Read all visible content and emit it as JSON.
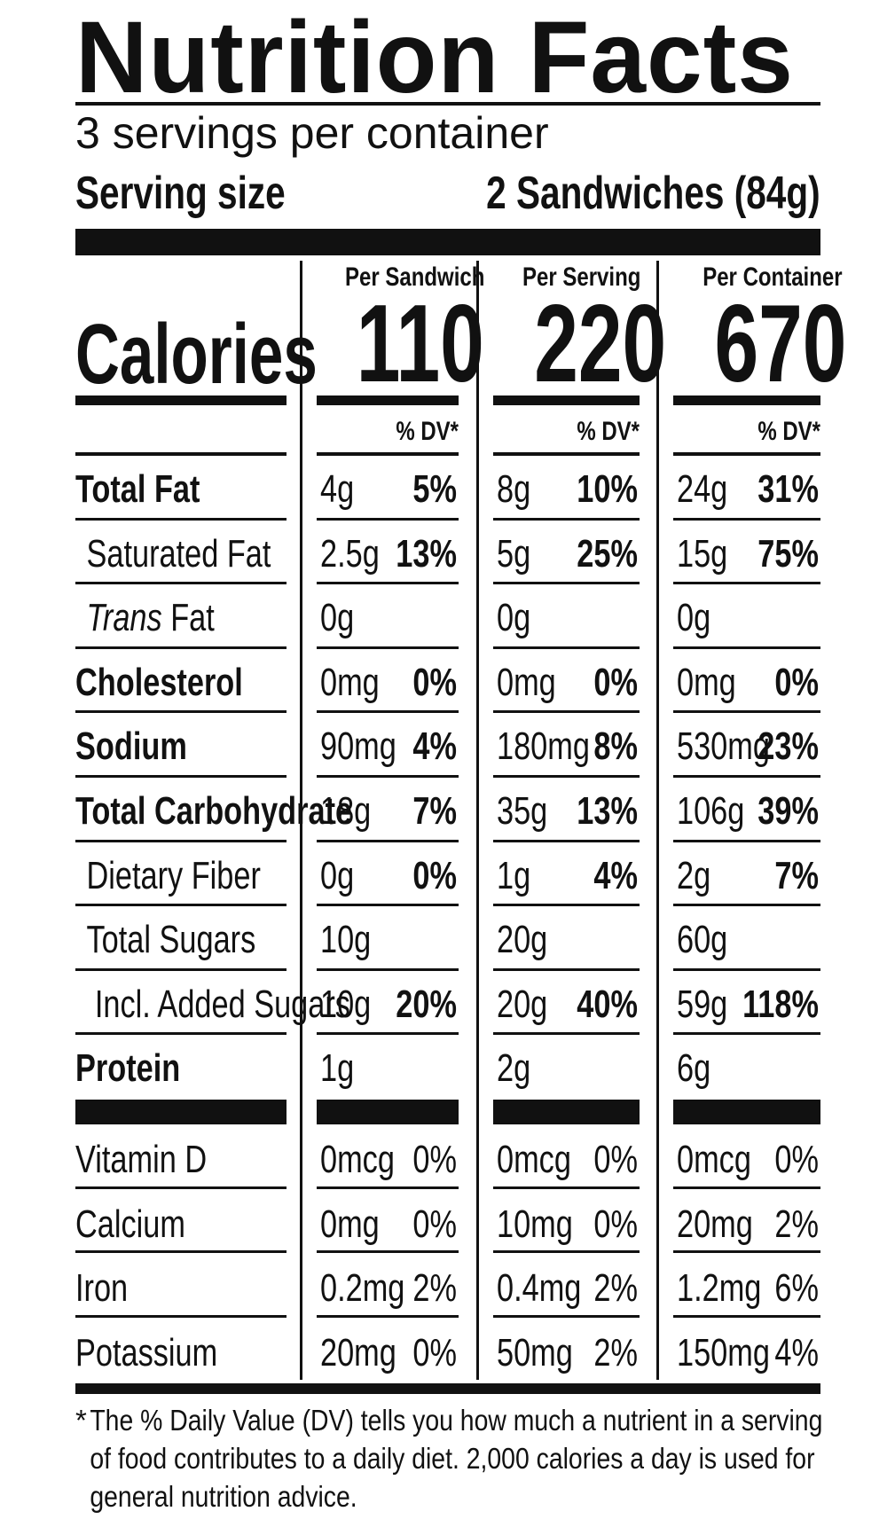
{
  "title": "Nutrition Facts",
  "servings_per_container": "3 servings per container",
  "serving_size": {
    "label": "Serving size",
    "value": "2 Sandwiches (84g)"
  },
  "calories_label": "Calories",
  "columns": [
    {
      "header": "Per Sandwich",
      "calories": "110",
      "dv_header": "% DV*"
    },
    {
      "header": "Per Serving",
      "calories": "220",
      "dv_header": "% DV*"
    },
    {
      "header": "Per Container",
      "calories": "670",
      "dv_header": "% DV*"
    }
  ],
  "nutrients": [
    {
      "label": "Total Fat",
      "bold": true,
      "indent": 0,
      "values": [
        [
          "4g",
          "5%"
        ],
        [
          "8g",
          "10%"
        ],
        [
          "24g",
          "31%"
        ]
      ]
    },
    {
      "label": "Saturated Fat",
      "bold": false,
      "indent": 1,
      "values": [
        [
          "2.5g",
          "13%"
        ],
        [
          "5g",
          "25%"
        ],
        [
          "15g",
          "75%"
        ]
      ]
    },
    {
      "label_italic": "Trans",
      "label": " Fat",
      "bold": false,
      "indent": 1,
      "values": [
        [
          "0g",
          ""
        ],
        [
          "0g",
          ""
        ],
        [
          "0g",
          ""
        ]
      ]
    },
    {
      "label": "Cholesterol",
      "bold": true,
      "indent": 0,
      "values": [
        [
          "0mg",
          "0%"
        ],
        [
          "0mg",
          "0%"
        ],
        [
          "0mg",
          "0%"
        ]
      ]
    },
    {
      "label": "Sodium",
      "bold": true,
      "indent": 0,
      "values": [
        [
          "90mg",
          "4%"
        ],
        [
          "180mg",
          "8%"
        ],
        [
          "530mg",
          "23%"
        ]
      ]
    },
    {
      "label": "Total Carbohydrate",
      "bold": true,
      "indent": 0,
      "values": [
        [
          "18g",
          "7%"
        ],
        [
          "35g",
          "13%"
        ],
        [
          "106g",
          "39%"
        ]
      ]
    },
    {
      "label": "Dietary Fiber",
      "bold": false,
      "indent": 1,
      "values": [
        [
          "0g",
          "0%"
        ],
        [
          "1g",
          "4%"
        ],
        [
          "2g",
          "7%"
        ]
      ]
    },
    {
      "label": "Total Sugars",
      "bold": false,
      "indent": 1,
      "values": [
        [
          "10g",
          ""
        ],
        [
          "20g",
          ""
        ],
        [
          "60g",
          ""
        ]
      ]
    },
    {
      "label": "Incl. Added Sugars",
      "bold": false,
      "indent": 2,
      "values": [
        [
          "10g",
          "20%"
        ],
        [
          "20g",
          "40%"
        ],
        [
          "59g",
          "118%"
        ]
      ]
    },
    {
      "label": "Protein",
      "bold": true,
      "indent": 0,
      "values": [
        [
          "1g",
          ""
        ],
        [
          "2g",
          ""
        ],
        [
          "6g",
          ""
        ]
      ]
    }
  ],
  "vitamins": [
    {
      "label": "Vitamin D",
      "values": [
        [
          "0mcg",
          "0%"
        ],
        [
          "0mcg",
          "0%"
        ],
        [
          "0mcg",
          "0%"
        ]
      ]
    },
    {
      "label": "Calcium",
      "values": [
        [
          "0mg",
          "0%"
        ],
        [
          "10mg",
          "0%"
        ],
        [
          "20mg",
          "2%"
        ]
      ]
    },
    {
      "label": "Iron",
      "values": [
        [
          "0.2mg",
          "2%"
        ],
        [
          "0.4mg",
          "2%"
        ],
        [
          "1.2mg",
          "6%"
        ]
      ]
    },
    {
      "label": "Potassium",
      "values": [
        [
          "20mg",
          "0%"
        ],
        [
          "50mg",
          "2%"
        ],
        [
          "150mg",
          "4%"
        ]
      ]
    }
  ],
  "footnote": {
    "star": "*",
    "text": "The % Daily Value (DV) tells you how much a nutrient in a serving of food contributes to a daily diet. 2,000 calories a day is used for general nutrition advice."
  }
}
